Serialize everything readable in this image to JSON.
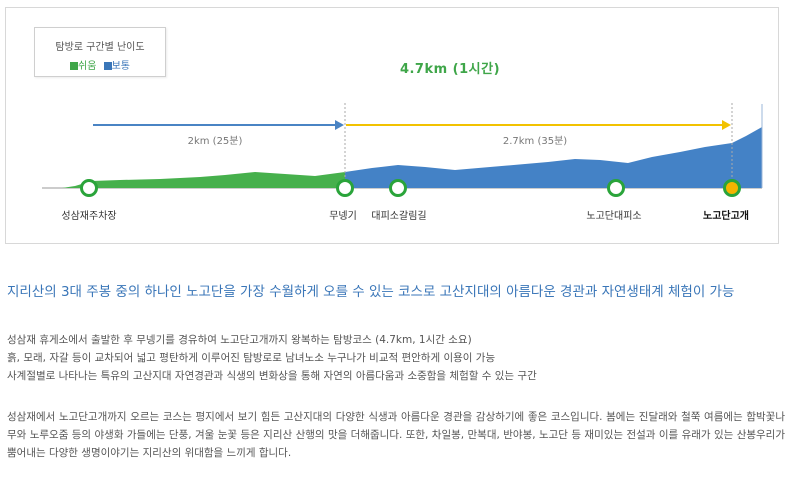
{
  "legend": {
    "title": "탐방로 구간별 난이도",
    "items": [
      {
        "label": "쉬움",
        "color": "#3fa649"
      },
      {
        "label": "보통",
        "color": "#3a76b8"
      }
    ]
  },
  "route": {
    "total": "4.7km (1시간)",
    "segments": [
      {
        "label": "2km (25분)",
        "arrow_color": "#4a84c4"
      },
      {
        "label": "2.7km (35분)",
        "arrow_color": "#f2c200"
      }
    ],
    "stops": [
      {
        "name": "성삼재주차장",
        "marker": "green"
      },
      {
        "name": "무넹기",
        "marker": "green"
      },
      {
        "name": "대피소갈림길",
        "marker": "green"
      },
      {
        "name": "노고단대피소",
        "marker": "green"
      },
      {
        "name": "노고단고개",
        "marker": "yellow"
      }
    ]
  },
  "article": {
    "heading": "지리산의 3대 주봉 중의 하나인 노고단을 가장 수월하게 오를 수 있는 코스로 고산지대의 아름다운 경관과 자연생태계 체험이 가능",
    "summary": [
      "성삼재 휴게소에서 출발한 후 무넹기를 경유하여 노고단고개까지 왕복하는 탐방코스 (4.7km, 1시간 소요)",
      "흙, 모래, 자갈 등이 교차되어 넓고 평탄하게 이루어진 탐방로로 남녀노소 누구나가 비교적 편안하게 이용이 가능",
      "사계절별로 나타나는 특유의 고산지대 자연경관과 식생의 변화상을 통해 자연의 아름다움과 소중함을 체험할 수 있는 구간"
    ],
    "description": "성삼재에서 노고단고개까지 오르는 코스는 평지에서 보기 힘든 고산지대의 다양한 식생과 아름다운 경관을 감상하기에 좋은 코스입니다. 봄에는 진달래와 철쭉 여름에는 함박꽃나무와 노루오줌 등의 야생화 가들에는 단풍, 겨울 눈꽃 등은 지리산 산행의 맛을 더해줍니다. 또한, 차일봉, 만복대, 반야봉, 노고단 등 재미있는 전설과 이를 유래가 있는 산봉우리가 뿜어내는 다양한 생명이야기는 지리산의 위대함을 느끼게 합니다."
  }
}
